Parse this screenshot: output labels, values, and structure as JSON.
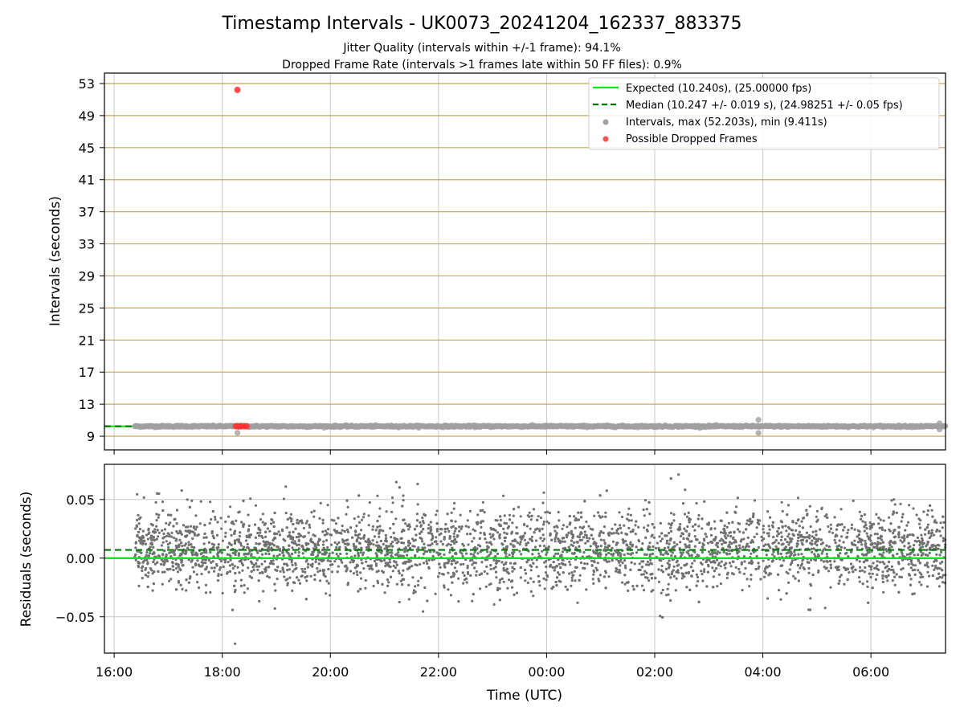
{
  "chart_data": [
    {
      "type": "scatter",
      "title": "Timestamp Intervals - UK0073_20241204_162337_883375",
      "subtitle_lines": [
        "Jitter Quality (intervals within +/-1 frame): 94.1%",
        "Dropped Frame Rate (intervals >1 frames late within 50 FF files): 0.9%"
      ],
      "ylabel": "Intervals (seconds)",
      "xlabel": "",
      "x_hours_from_1600": {
        "min": -0.18,
        "max": 15.38
      },
      "ylim": [
        7.3,
        54.3
      ],
      "yticks": [
        "9",
        "13",
        "17",
        "21",
        "25",
        "29",
        "33",
        "37",
        "41",
        "45",
        "49",
        "53"
      ],
      "ytick_values": [
        9,
        13,
        17,
        21,
        25,
        29,
        33,
        37,
        41,
        45,
        49,
        53
      ],
      "xtick_values": [
        0,
        2,
        4,
        6,
        8,
        10,
        12,
        14
      ],
      "hgrid_color": "#c8a850",
      "vgrid_color": "#c8c8c8",
      "expected_value": 10.24,
      "median_value": 10.247,
      "intervals_band": {
        "x_start": 0.38,
        "x_end": 15.38,
        "y": 10.24
      },
      "outliers": [
        {
          "x": 2.28,
          "y": 9.42
        },
        {
          "x": 11.92,
          "y": 11.05
        },
        {
          "x": 11.92,
          "y": 9.41
        },
        {
          "x": 15.27,
          "y": 10.62
        },
        {
          "x": 15.27,
          "y": 9.85
        }
      ],
      "dropped_frames": [
        {
          "x": 2.28,
          "y": 52.203
        },
        {
          "x": 2.25,
          "y": 10.25
        },
        {
          "x": 2.3,
          "y": 10.25
        },
        {
          "x": 2.35,
          "y": 10.25
        },
        {
          "x": 2.4,
          "y": 10.25
        },
        {
          "x": 2.45,
          "y": 10.25
        }
      ],
      "legend": {
        "placement": "top-right",
        "entries": [
          {
            "label": "Expected (10.240s), (25.00000 fps)",
            "color": "#00ee00",
            "style": "solid"
          },
          {
            "label": "Median (10.247 +/- 0.019 s), (24.98251 +/- 0.05 fps)",
            "color": "#007a00",
            "style": "dashed"
          },
          {
            "label": "Intervals, max (52.203s), min (9.411s)",
            "color": "#a0a0a0",
            "style": "dot"
          },
          {
            "label": "Possible Dropped Frames",
            "color": "#ff5050",
            "style": "dot"
          }
        ]
      },
      "colors": {
        "intervals": "#a0a0a0",
        "dropped": "#ff3030",
        "expected": "#00ee00",
        "median": "#007a00"
      }
    },
    {
      "type": "scatter",
      "ylabel": "Residuals (seconds)",
      "xlabel": "Time (UTC)",
      "ylim": [
        -0.081,
        0.08
      ],
      "yticks": [
        "−0.05",
        "0.00",
        "0.05"
      ],
      "ytick_values": [
        -0.05,
        0.0,
        0.05
      ],
      "xticks": [
        "16:00",
        "18:00",
        "20:00",
        "22:00",
        "00:00",
        "02:00",
        "04:00",
        "06:00"
      ],
      "xtick_values": [
        0,
        2,
        4,
        6,
        8,
        10,
        12,
        14
      ],
      "expected_residual": 0.0,
      "median_residual": 0.007,
      "residual_points": {
        "count": 4200,
        "x_start": 0.38,
        "x_end": 15.38,
        "typical_range": [
          -0.03,
          0.045
        ],
        "extreme_range": [
          -0.073,
          0.072
        ],
        "color": "#707070"
      }
    }
  ]
}
